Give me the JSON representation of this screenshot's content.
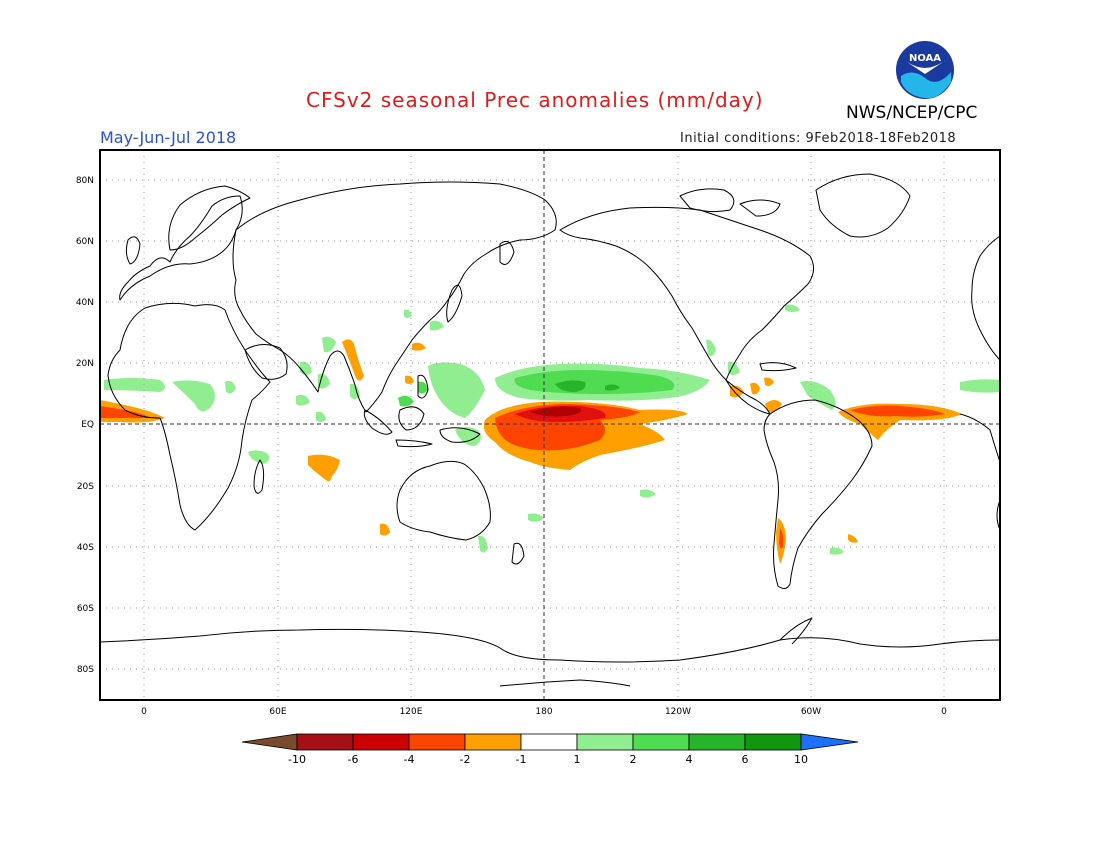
{
  "header": {
    "title": "CFSv2 seasonal Prec anomalies (mm/day)",
    "period": "May-Jun-Jul 2018",
    "agency": "NWS/NCEP/CPC",
    "initial_conditions": "Initial conditions: 9Feb2018-18Feb2018",
    "logo_text": "NOAA"
  },
  "axes": {
    "lat_labels": [
      "80N",
      "60N",
      "40N",
      "20N",
      "EQ",
      "20S",
      "40S",
      "60S",
      "80S"
    ],
    "lon_labels": [
      "0",
      "60E",
      "120E",
      "180",
      "120W",
      "60W",
      "0"
    ]
  },
  "colorbar": {
    "labels": [
      "-10",
      "-6",
      "-4",
      "-2",
      "-1",
      "1",
      "2",
      "4",
      "6",
      "10"
    ],
    "colors": [
      "#7a4a2e",
      "#a50f15",
      "#cc0000",
      "#ff4400",
      "#ffa000",
      "#ffffff",
      "#90ee90",
      "#50dc50",
      "#28b428",
      "#109610",
      "#1f6fff"
    ]
  },
  "colors": {
    "dry_1": "#ffa000",
    "dry_2": "#ff4400",
    "dry_3": "#e01010",
    "dry_4": "#b00000",
    "wet_1": "#90ee90",
    "wet_2": "#50dc50",
    "wet_3": "#28b428"
  }
}
